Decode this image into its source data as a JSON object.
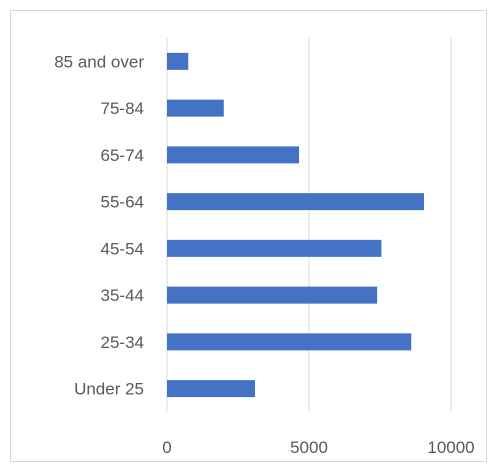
{
  "chart_data": {
    "type": "bar",
    "orientation": "horizontal",
    "title": "",
    "xlabel": "",
    "ylabel": "",
    "categories": [
      "Under 25",
      "25-34",
      "35-44",
      "45-54",
      "55-64",
      "65-74",
      "75-84",
      "85 and over"
    ],
    "values": [
      3100,
      8600,
      7400,
      7550,
      9050,
      4650,
      2000,
      750
    ],
    "xlim": [
      0,
      11000
    ],
    "xticks": [
      0,
      5000,
      10000
    ],
    "grid": "vertical",
    "legend": "none",
    "bar_color": "#4472c4",
    "grid_color": "#d9d9d9"
  }
}
